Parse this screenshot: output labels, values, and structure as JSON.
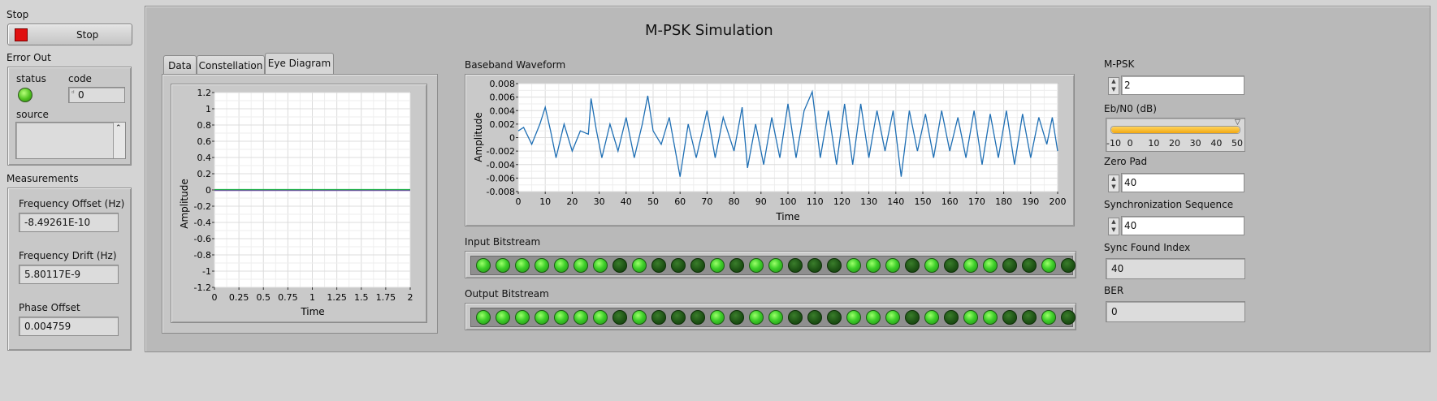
{
  "stop": {
    "label": "Stop",
    "button_label": "Stop"
  },
  "error_out": {
    "label": "Error Out",
    "status_label": "status",
    "code_label": "code",
    "code_value": "0",
    "source_label": "source"
  },
  "measurements": {
    "label": "Measurements",
    "freq_offset_label": "Frequency Offset (Hz)",
    "freq_offset_value": "-8.49261E-10",
    "freq_drift_label": "Frequency Drift (Hz)",
    "freq_drift_value": "5.80117E-9",
    "phase_offset_label": "Phase Offset",
    "phase_offset_value": "0.004759"
  },
  "main": {
    "title": "M-PSK Simulation"
  },
  "tabs": [
    {
      "label": "Data",
      "active": false
    },
    {
      "label": "Constellation",
      "active": false
    },
    {
      "label": "Eye Diagram",
      "active": true
    }
  ],
  "eye_chart": {
    "ylabel": "Amplitude",
    "xlabel": "Time",
    "yticks": [
      "1.2",
      "1",
      "0.8",
      "0.6",
      "0.4",
      "0.2",
      "0",
      "-0.2",
      "-0.4",
      "-0.6",
      "-0.8",
      "-1",
      "-1.2"
    ],
    "xticks": [
      "0",
      "0.25",
      "0.5",
      "0.75",
      "1",
      "1.25",
      "1.5",
      "1.75",
      "2"
    ]
  },
  "baseband": {
    "title": "Baseband Waveform",
    "ylabel": "Amplitude",
    "xlabel": "Time",
    "yticks": [
      "0.008",
      "0.006",
      "0.004",
      "0.002",
      "0",
      "-0.002",
      "-0.004",
      "-0.006",
      "-0.008"
    ],
    "xticks": [
      "0",
      "10",
      "20",
      "30",
      "40",
      "50",
      "60",
      "70",
      "80",
      "90",
      "100",
      "110",
      "120",
      "130",
      "140",
      "150",
      "160",
      "170",
      "180",
      "190",
      "200"
    ],
    "line_color": "#1f6fb4"
  },
  "input_bitstream": {
    "label": "Input Bitstream",
    "bits": [
      1,
      1,
      1,
      1,
      1,
      1,
      1,
      0,
      1,
      0,
      0,
      0,
      1,
      0,
      1,
      1,
      0,
      0,
      0,
      1,
      1,
      1,
      0,
      1,
      0,
      1,
      1,
      0,
      0,
      1,
      0
    ]
  },
  "output_bitstream": {
    "label": "Output Bitstream",
    "bits": [
      1,
      1,
      1,
      1,
      1,
      1,
      1,
      0,
      1,
      0,
      0,
      0,
      1,
      0,
      1,
      1,
      0,
      0,
      0,
      1,
      1,
      1,
      0,
      1,
      0,
      1,
      1,
      0,
      0,
      1,
      0
    ]
  },
  "controls": {
    "mpsk_label": "M-PSK",
    "mpsk_value": "2",
    "ebn0_label": "Eb/N0 (dB)",
    "ebn0_ticks": [
      "-10",
      "0",
      "10",
      "20",
      "30",
      "40",
      "50"
    ],
    "ebn0_value": 50,
    "zero_pad_label": "Zero Pad",
    "zero_pad_value": "40",
    "sync_seq_label": "Synchronization Sequence",
    "sync_seq_value": "40",
    "sync_index_label": "Sync Found Index",
    "sync_index_value": "40",
    "ber_label": "BER",
    "ber_value": "0"
  },
  "chart_data": [
    {
      "type": "line",
      "title": "",
      "xlabel": "Time",
      "ylabel": "Amplitude",
      "xlim": [
        0,
        2
      ],
      "ylim": [
        -1.2,
        1.2
      ],
      "series": [
        {
          "x": [
            0,
            2
          ],
          "values": [
            0,
            0
          ]
        }
      ]
    },
    {
      "type": "line",
      "title": "Baseband Waveform",
      "xlabel": "Time",
      "ylabel": "Amplitude",
      "xlim": [
        0,
        200
      ],
      "ylim": [
        -0.008,
        0.008
      ],
      "series": [
        {
          "x": [
            0,
            2,
            5,
            8,
            10,
            12,
            14,
            17,
            20,
            23,
            26,
            27,
            29,
            31,
            34,
            37,
            40,
            43,
            46,
            48,
            50,
            53,
            56,
            60,
            63,
            66,
            70,
            73,
            76,
            80,
            83,
            85,
            88,
            91,
            94,
            97,
            100,
            103,
            106,
            109,
            112,
            115,
            118,
            121,
            124,
            127,
            130,
            133,
            136,
            139,
            142,
            145,
            148,
            151,
            154,
            157,
            160,
            163,
            166,
            169,
            172,
            175,
            178,
            181,
            184,
            187,
            190,
            193,
            196,
            198,
            200
          ],
          "values": [
            0.001,
            0.0015,
            -0.001,
            0.002,
            0.0045,
            0.001,
            -0.003,
            0.002,
            -0.002,
            0.001,
            0.0005,
            0.0058,
            0.001,
            -0.003,
            0.002,
            -0.002,
            0.003,
            -0.003,
            0.002,
            0.0062,
            0.001,
            -0.001,
            0.003,
            -0.0058,
            0.002,
            -0.003,
            0.004,
            -0.003,
            0.003,
            -0.002,
            0.0045,
            -0.0045,
            0.002,
            -0.004,
            0.003,
            -0.003,
            0.005,
            -0.003,
            0.004,
            0.0068,
            -0.003,
            0.004,
            -0.004,
            0.005,
            -0.004,
            0.005,
            -0.003,
            0.004,
            -0.002,
            0.004,
            -0.0058,
            0.004,
            -0.002,
            0.0035,
            -0.003,
            0.004,
            -0.002,
            0.003,
            -0.003,
            0.004,
            -0.004,
            0.0035,
            -0.003,
            0.004,
            -0.004,
            0.0035,
            -0.003,
            0.003,
            -0.001,
            0.003,
            -0.002
          ]
        }
      ]
    }
  ]
}
